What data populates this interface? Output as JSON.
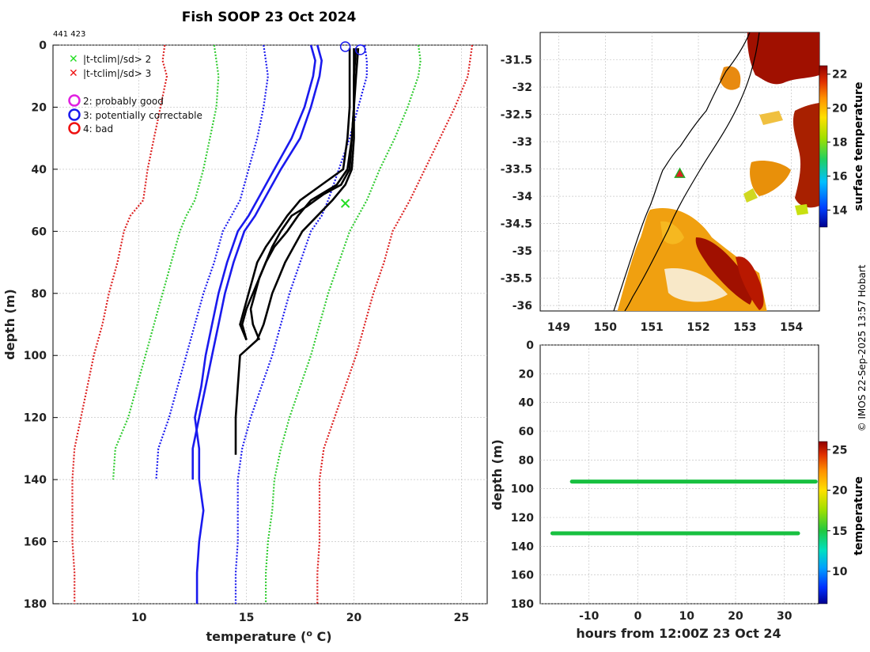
{
  "title": "Fish SOOP 23 Oct 2024",
  "platform_id": "441 423",
  "credit": "© IMOS 22-Sep-2025 13:57 Hobart",
  "legend": {
    "flags": [
      {
        "label": "|t-tclim|/sd> 2",
        "color": "#22dd22"
      },
      {
        "label": "|t-tclim|/sd> 3",
        "color": "#ee1111"
      }
    ],
    "qc": [
      {
        "label": "2: probably good",
        "color": "#e020e0"
      },
      {
        "label": "3: potentially correctable",
        "color": "#1a1aee"
      },
      {
        "label": "4: bad",
        "color": "#ee1111"
      }
    ]
  },
  "chart_data": [
    {
      "id": "profile",
      "type": "line",
      "xlabel": "temperature (o C)",
      "ylabel": "depth (m)",
      "xlim": [
        6,
        26.2
      ],
      "ylim": [
        180,
        0
      ],
      "xticks": [
        10,
        15,
        20,
        25
      ],
      "yticks": [
        0,
        20,
        40,
        60,
        80,
        100,
        120,
        140,
        160,
        180
      ],
      "grid": true,
      "series": [
        {
          "name": "clim-3sd-lo",
          "color": "#dd2222",
          "style": "dotted",
          "depth": [
            0,
            5,
            10,
            20,
            30,
            40,
            50,
            55,
            60,
            70,
            80,
            90,
            100,
            110,
            120,
            130,
            140,
            150,
            160,
            170,
            180
          ],
          "temp": [
            11.2,
            11.1,
            11.3,
            11.0,
            10.7,
            10.4,
            10.2,
            9.6,
            9.3,
            9.0,
            8.6,
            8.3,
            7.9,
            7.6,
            7.3,
            7.0,
            6.9,
            6.9,
            6.9,
            7.0,
            7.0
          ]
        },
        {
          "name": "clim-2sd-lo",
          "color": "#33cc33",
          "style": "dotted",
          "depth": [
            0,
            5,
            10,
            20,
            30,
            40,
            50,
            55,
            60,
            70,
            80,
            90,
            100,
            110,
            120,
            130,
            140
          ],
          "temp": [
            13.5,
            13.6,
            13.7,
            13.6,
            13.3,
            13.0,
            12.6,
            12.2,
            11.9,
            11.5,
            11.1,
            10.7,
            10.3,
            9.9,
            9.5,
            8.9,
            8.8
          ]
        },
        {
          "name": "clim-1sd-lo",
          "color": "#1a1aee",
          "style": "dotted",
          "depth": [
            0,
            5,
            10,
            20,
            30,
            40,
            50,
            55,
            60,
            70,
            80,
            90,
            100,
            110,
            120,
            130,
            140
          ],
          "temp": [
            15.8,
            15.9,
            16.0,
            15.8,
            15.5,
            15.1,
            14.7,
            14.3,
            13.9,
            13.5,
            13.0,
            12.6,
            12.2,
            11.8,
            11.4,
            10.9,
            10.8
          ]
        },
        {
          "name": "clim-mean",
          "color": "#1a1aee",
          "style": "solid",
          "depth": [
            0,
            5,
            10,
            20,
            30,
            40,
            50,
            55,
            60,
            70,
            80,
            90,
            100,
            110,
            120,
            130,
            140
          ],
          "temp": [
            18.3,
            18.5,
            18.4,
            18.0,
            17.5,
            16.6,
            15.8,
            15.4,
            14.9,
            14.4,
            14.0,
            13.7,
            13.4,
            13.1,
            12.8,
            12.5,
            12.5
          ]
        },
        {
          "name": "clim-mean-2",
          "color": "#1a1aee",
          "style": "solid",
          "depth": [
            0,
            5,
            10,
            20,
            30,
            40,
            50,
            55,
            60,
            70,
            80,
            90,
            100,
            110,
            120,
            130,
            140,
            150,
            160,
            170,
            180
          ],
          "temp": [
            18.0,
            18.2,
            18.1,
            17.7,
            17.1,
            16.3,
            15.5,
            15.1,
            14.6,
            14.1,
            13.7,
            13.4,
            13.1,
            12.9,
            12.6,
            12.8,
            12.8,
            13.0,
            12.8,
            12.7,
            12.7
          ]
        },
        {
          "name": "clim-1sd-hi",
          "color": "#1a1aee",
          "style": "dotted",
          "depth": [
            0,
            5,
            10,
            20,
            30,
            40,
            50,
            55,
            60,
            70,
            80,
            90,
            100,
            110,
            120,
            130,
            140,
            150,
            160,
            170,
            180
          ],
          "temp": [
            20.5,
            20.6,
            20.6,
            20.2,
            19.8,
            19.3,
            18.8,
            18.5,
            18.0,
            17.5,
            17.0,
            16.6,
            16.2,
            15.7,
            15.2,
            14.8,
            14.6,
            14.6,
            14.6,
            14.5,
            14.5
          ]
        },
        {
          "name": "clim-2sd-hi",
          "color": "#33cc33",
          "style": "dotted",
          "depth": [
            0,
            5,
            10,
            20,
            30,
            40,
            50,
            55,
            60,
            70,
            80,
            90,
            100,
            110,
            120,
            130,
            140,
            150,
            160,
            170,
            180
          ],
          "temp": [
            23.0,
            23.1,
            23.0,
            22.5,
            21.9,
            21.2,
            20.6,
            20.2,
            19.8,
            19.3,
            18.8,
            18.4,
            18.0,
            17.5,
            17.0,
            16.6,
            16.3,
            16.2,
            16.0,
            15.9,
            15.9
          ]
        },
        {
          "name": "clim-3sd-hi",
          "color": "#dd2222",
          "style": "dotted",
          "depth": [
            0,
            5,
            10,
            20,
            30,
            40,
            50,
            55,
            60,
            70,
            80,
            90,
            100,
            110,
            120,
            130,
            140,
            150,
            160,
            170,
            180
          ],
          "temp": [
            25.5,
            25.4,
            25.3,
            24.7,
            24.0,
            23.3,
            22.6,
            22.2,
            21.8,
            21.4,
            20.9,
            20.5,
            20.1,
            19.6,
            19.1,
            18.6,
            18.4,
            18.4,
            18.4,
            18.3,
            18.3
          ]
        },
        {
          "name": "cast-1",
          "color": "#000000",
          "style": "solid",
          "depth": [
            1,
            10,
            20,
            30,
            40,
            45,
            50,
            55,
            60,
            65,
            70,
            75,
            80,
            85,
            90,
            95,
            100,
            110,
            120,
            130,
            132
          ],
          "temp": [
            20.0,
            20.0,
            20.0,
            20.0,
            19.9,
            19.6,
            19.0,
            18.3,
            17.6,
            17.2,
            16.8,
            16.5,
            16.2,
            16.0,
            15.8,
            15.5,
            14.7,
            14.6,
            14.5,
            14.5,
            14.5
          ]
        },
        {
          "name": "cast-2",
          "color": "#000000",
          "style": "solid",
          "depth": [
            1,
            10,
            20,
            30,
            40,
            45,
            48,
            52,
            55,
            60,
            65,
            70,
            75,
            80,
            85,
            90,
            95
          ],
          "temp": [
            20.2,
            20.1,
            20.0,
            19.9,
            19.8,
            19.4,
            18.6,
            17.8,
            17.1,
            16.6,
            16.2,
            15.9,
            15.6,
            15.4,
            15.2,
            15.3,
            15.6
          ]
        },
        {
          "name": "cast-3",
          "color": "#000000",
          "style": "solid",
          "depth": [
            1,
            10,
            20,
            30,
            40,
            45,
            50,
            55,
            60,
            65,
            70,
            75,
            80,
            85,
            90,
            95
          ],
          "temp": [
            20.1,
            20.0,
            20.0,
            19.9,
            19.7,
            19.2,
            18.0,
            17.4,
            16.9,
            16.3,
            15.9,
            15.6,
            15.3,
            15.0,
            14.8,
            15.0
          ]
        },
        {
          "name": "cast-4",
          "color": "#000000",
          "style": "solid",
          "depth": [
            1,
            10,
            20,
            30,
            40,
            45,
            50,
            55,
            60,
            65,
            70,
            75,
            80,
            85,
            90,
            95
          ],
          "temp": [
            19.8,
            19.8,
            19.8,
            19.7,
            19.5,
            18.5,
            17.5,
            16.9,
            16.4,
            15.9,
            15.5,
            15.3,
            15.1,
            14.9,
            14.7,
            15.0
          ]
        }
      ],
      "markers": [
        {
          "label": "qc-3",
          "temp": 19.6,
          "depth": 0.5,
          "shape": "circle",
          "color": "#1a1aee"
        },
        {
          "label": "qc-3",
          "temp": 20.3,
          "depth": 1.5,
          "shape": "circle",
          "color": "#1a1aee"
        },
        {
          "label": "flag-2sd",
          "temp": 19.6,
          "depth": 51,
          "shape": "x",
          "color": "#22dd22"
        }
      ]
    },
    {
      "id": "map",
      "type": "heatmap",
      "xlim": [
        148.6,
        154.6
      ],
      "ylim": [
        -36.1,
        -31.0
      ],
      "xticks": [
        149,
        150,
        151,
        152,
        153,
        154
      ],
      "yticks": [
        -31.5,
        -32,
        -32.5,
        -33,
        -33.5,
        -34,
        -34.5,
        -35,
        -35.5,
        -36
      ],
      "colorbar": {
        "label": "surface temperature",
        "range": [
          13,
          22.5
        ],
        "ticks": [
          14,
          16,
          18,
          20,
          22
        ]
      },
      "station_marker": {
        "lon": 151.6,
        "lat": -33.58
      }
    },
    {
      "id": "time-depth",
      "type": "scatter",
      "xlabel": "hours from 12:00Z 23 Oct 24",
      "ylabel": "depth (m)",
      "xlim": [
        -20,
        37
      ],
      "ylim": [
        180,
        0
      ],
      "xticks": [
        -10,
        0,
        10,
        20,
        30
      ],
      "yticks": [
        0,
        20,
        40,
        60,
        80,
        100,
        120,
        140,
        160,
        180
      ],
      "grid": true,
      "colorbar": {
        "label": "temperature",
        "range": [
          6,
          26
        ],
        "ticks": [
          10,
          15,
          20,
          25
        ]
      },
      "casts": [
        {
          "hours": [
            -17.5,
            32.8
          ],
          "bottom_depth": 131
        },
        {
          "hours": [
            -13.5,
            36.4
          ],
          "bottom_depth": 95
        }
      ]
    }
  ]
}
